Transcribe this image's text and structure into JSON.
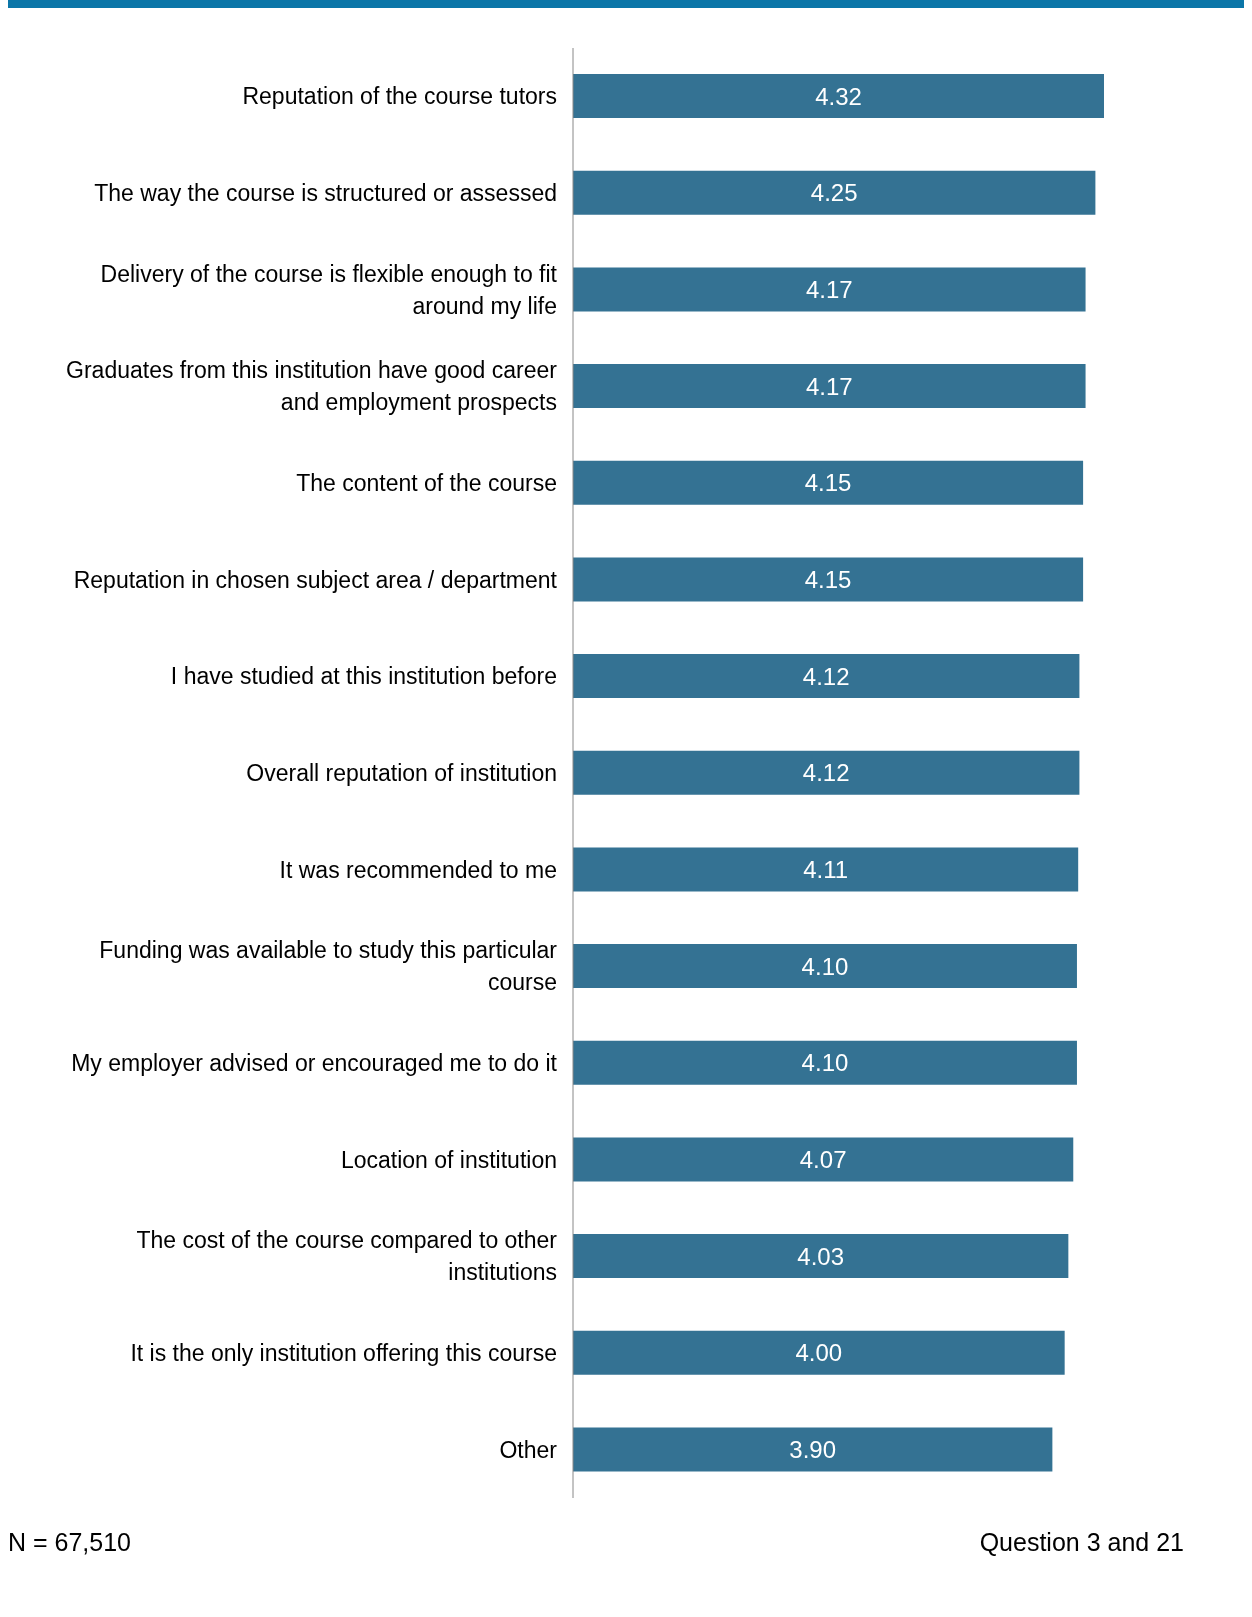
{
  "chart_data": {
    "type": "bar",
    "orientation": "horizontal",
    "categories": [
      "Reputation of the course tutors",
      "The way the course is structured or assessed",
      "Delivery of the course is flexible enough to fit around my life",
      "Graduates from this institution have good career and employment prospects",
      "The content of the course",
      "Reputation in chosen subject area / department",
      "I have studied at this institution before",
      "Overall reputation of institution",
      "It was recommended to me",
      "Funding was available to study this particular course",
      "My employer advised or encouraged me to do it",
      "Location of institution",
      "The cost of the course compared to other institutions",
      "It is the only institution offering this course",
      "Other"
    ],
    "values": [
      4.32,
      4.25,
      4.17,
      4.17,
      4.15,
      4.15,
      4.12,
      4.12,
      4.11,
      4.1,
      4.1,
      4.07,
      4.03,
      4.0,
      3.9
    ],
    "value_labels": [
      "4.32",
      "4.25",
      "4.17",
      "4.17",
      "4.15",
      "4.15",
      "4.12",
      "4.12",
      "4.11",
      "4.10",
      "4.10",
      "4.07",
      "4.03",
      "4.00",
      "3.90"
    ],
    "color": "#347293",
    "annotations": [
      "N = 67,510",
      "Question 3 and 21"
    ]
  }
}
